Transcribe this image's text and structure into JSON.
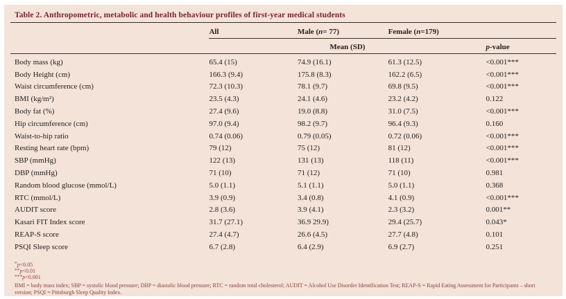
{
  "panel": {
    "title": "Table 2. Anthropometric, metabolic and health behaviour profiles of first-year medical students"
  },
  "header": {
    "all": "All",
    "male": {
      "prefix": "Male (",
      "n": "n",
      "suffix": "= 77)"
    },
    "female": {
      "prefix": "Female (",
      "n": "n",
      "suffix": "=179)"
    },
    "mean_sd": "Mean (SD)",
    "p_value": {
      "p": "p",
      "suffix": "-value"
    }
  },
  "rows": [
    {
      "label": "Body mass (kg)",
      "all": "65.4 (15)",
      "male": "74.9 (16.1)",
      "female": "61.3 (12.5)",
      "p": "<0.001***"
    },
    {
      "label": "Body Height (cm)",
      "all": "166.3 (9.4)",
      "male": "175.8 (8.3)",
      "female": "162.2 (6.5)",
      "p": "<0.001***"
    },
    {
      "label": "Waist circumference (cm)",
      "all": "72.3 (10.3)",
      "male": "78.1 (9.7)",
      "female": "69.8 (9.5)",
      "p": "<0.001***"
    },
    {
      "label": "BMI (kg/m²)",
      "all": "23.5 (4.3)",
      "male": "24.1 (4.6)",
      "female": "23.2 (4.2)",
      "p": "0.122"
    },
    {
      "label": "Body fat (%)",
      "all": "27.4 (9.6)",
      "male": "19.0 (8.8)",
      "female": "31.0 (7.5)",
      "p": "<0.001***"
    },
    {
      "label": "Hip circumference (cm)",
      "all": "97.0 (9.4)",
      "male": "98.2 (9.7)",
      "female": "96.4 (9.3)",
      "p": "0.160"
    },
    {
      "label": "Waist-to-hip ratio",
      "all": "0.74 (0.06)",
      "male": "0.79 (0.05)",
      "female": "0.72 (0.06)",
      "p": "<0.001***"
    },
    {
      "label": "Resting heart rate (bpm)",
      "all": "79 (12)",
      "male": "75 (12)",
      "female": "81 (12)",
      "p": "<0.001***"
    },
    {
      "label": "SBP (mmHg)",
      "all": "122 (13)",
      "male": "131 (13)",
      "female": "118 (11)",
      "p": "<0.001***"
    },
    {
      "label": "DBP (mmHg)",
      "all": "71 (10)",
      "male": "71 (12)",
      "female": "71 (10)",
      "p": "0.981"
    },
    {
      "label": "Random blood glucose (mmol/L)",
      "all": "5.0 (1.1)",
      "male": "5.1 (1.1)",
      "female": "5.0 (1.1)",
      "p": "0.368"
    },
    {
      "label": "RTC (mmol/L)",
      "all": "3.9 (0.9)",
      "male": "3.4 (0.8)",
      "female": "4.1 (0.9)",
      "p": "<0.001***"
    },
    {
      "label": "AUDIT score",
      "all": "2.8 (3.6)",
      "male": "3.9 (4.1)",
      "female": "2.3 (3.2)",
      "p": "0.001**"
    },
    {
      "label": "Kasari FIT Index score",
      "all": "31.7 (27.1)",
      "male": "36.9 29.9)",
      "female": "29.4 (25.7)",
      "p": "0.043*"
    },
    {
      "label": "REAP-S score",
      "all": "27.4 (4.7)",
      "male": "26.6 (4.5)",
      "female": "27.7 (4.8)",
      "p": "0.101"
    },
    {
      "label": "PSQI Sleep score",
      "all": "6.7 (2.8)",
      "male": "6.4 (2.9)",
      "female": "6.9 (2.7)",
      "p": "0.251"
    }
  ],
  "footnotes": {
    "sig": [
      {
        "stars": "*",
        "p": "p",
        "rest": "<0.05"
      },
      {
        "stars": "**",
        "p": "p",
        "rest": "<0.01"
      },
      {
        "stars": "***",
        "p": "p",
        "rest": "<0.001"
      }
    ],
    "abbreviations": "BMI = body mass index; SBP = systolic blood pressure; DBP = diastolic blood pressure; RTC = random total cholesterol; AUDIT = Alcohol Use Disorder Identification Test; REAP-S = Rapid Eating Assessment for Participants – short version; PSQI = Pittsburgh Sleep Quality Index."
  },
  "colors": {
    "panel_bg": "#f3e3d9",
    "title_maroon": "#7c1f2d",
    "body_text": "#26201e",
    "footnote_maroon": "#8c4138",
    "rule": "#35302f"
  }
}
